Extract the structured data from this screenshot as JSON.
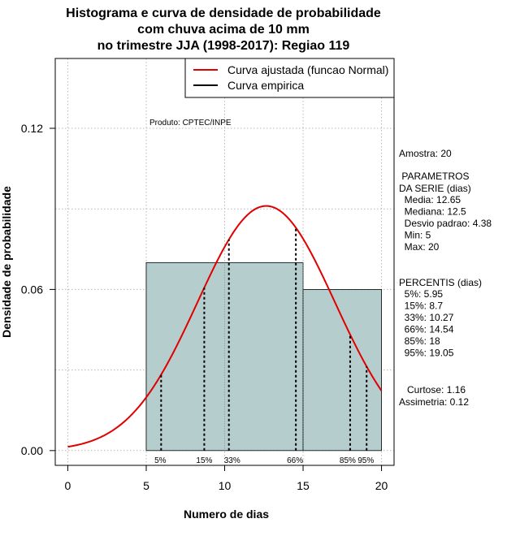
{
  "chart_data": {
    "type": "bar",
    "title_lines": [
      "Histograma e curva de densidade de probabilidade",
      "com chuva acima de 10 mm",
      "no trimestre JJA (1998-2017): Regiao 119"
    ],
    "xlabel": "Numero de dias",
    "ylabel": "Densidade de probabilidade",
    "xlim": [
      -0.8,
      20.8
    ],
    "ylim": [
      -0.0055,
      0.146
    ],
    "x_ticks": [
      0,
      5,
      10,
      15,
      20
    ],
    "y_ticks": [
      0.0,
      0.06,
      0.12
    ],
    "y_tick_labels": [
      "0.00",
      "0.06",
      "0.12"
    ],
    "grid": true,
    "bins": [
      {
        "start": 5,
        "end": 15,
        "density": 0.07
      },
      {
        "start": 15,
        "end": 20,
        "density": 0.06
      }
    ],
    "normal_fit": {
      "mean": 12.65,
      "sd": 4.38,
      "x_range": [
        0,
        20
      ]
    },
    "percentile_lines": [
      {
        "label": "5%",
        "x": 5.95
      },
      {
        "label": "15%",
        "x": 8.7
      },
      {
        "label": "33%",
        "x": 10.27
      },
      {
        "label": "66%",
        "x": 14.54
      },
      {
        "label": "85%",
        "x": 18
      },
      {
        "label": "95%",
        "x": 19.05
      }
    ],
    "legend": {
      "placement": "top-right",
      "entries": [
        {
          "label": "Curva ajustada (funcao Normal)",
          "color": "#e00000"
        },
        {
          "label": "Curva empirica",
          "color": "#000000"
        }
      ]
    },
    "annotation": "Produto: CPTEC/INPE",
    "colors": {
      "bar_fill": "#b5cdcd",
      "curve": "#e00000",
      "grid": "#b8b8b8"
    }
  },
  "side_panel": {
    "sample": "Amostra: 20",
    "params_title": " PARAMETROS",
    "params_subtitle": "DA SERIE (dias)",
    "params": [
      "  Media: 12.65",
      "  Mediana: 12.5",
      "  Desvio padrao: 4.38",
      "  Min: 5",
      "  Max: 20"
    ],
    "percentis_title": "PERCENTIS (dias)",
    "percentis": [
      "  5%: 5.95",
      "  15%: 8.7",
      "  33%: 10.27",
      "  66%: 14.54",
      "  85%: 18",
      "  95%: 19.05"
    ],
    "curtose": "   Curtose: 1.16",
    "assimetria": "Assimetria: 0.12"
  }
}
